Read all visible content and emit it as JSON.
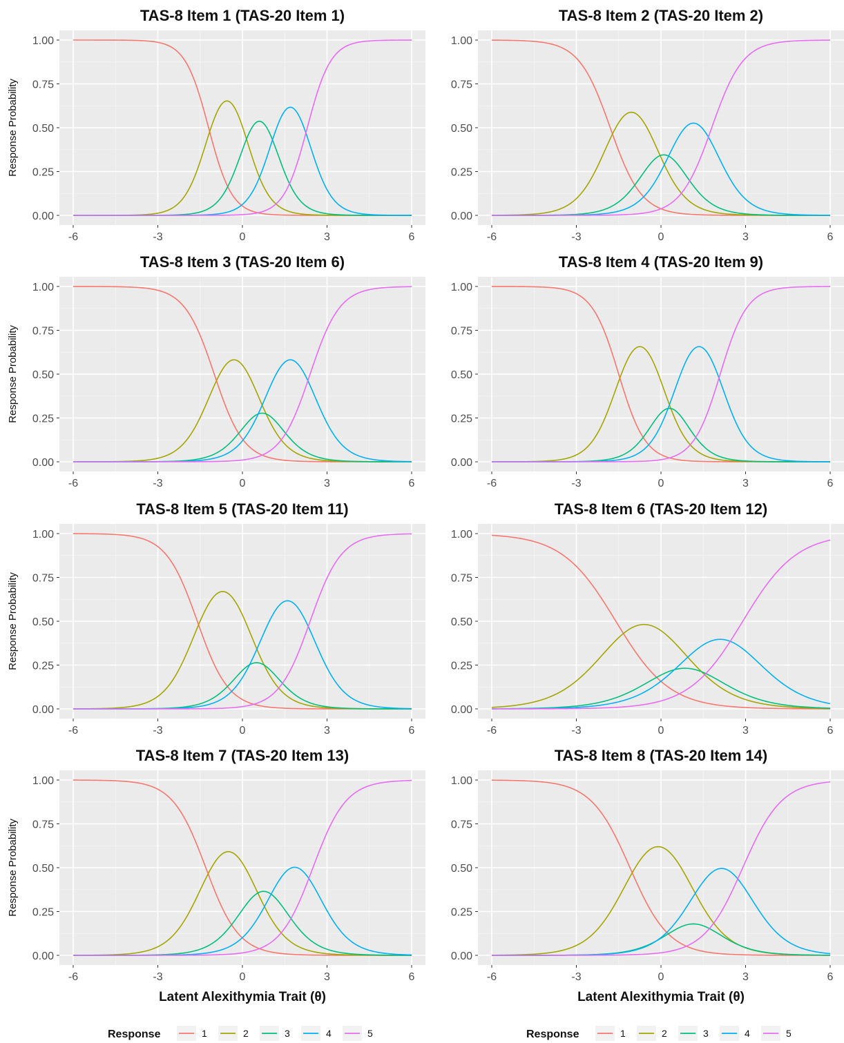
{
  "chart_data": {
    "type": "line",
    "ylabel": "Response Probability",
    "xlabel": "Latent Alexithymia Trait (θ)",
    "xlim": [
      -6,
      6
    ],
    "ylim": [
      0,
      1
    ],
    "x_ticks": [
      "-6",
      "-3",
      "0",
      "3",
      "6"
    ],
    "y_ticks": [
      "0.00",
      "0.25",
      "0.50",
      "0.75",
      "1.00"
    ],
    "grid": true,
    "legend": {
      "title": "Response",
      "placement": "bottom",
      "entries": [
        {
          "label": "1",
          "color": "#F8766D"
        },
        {
          "label": "2",
          "color": "#A3A500"
        },
        {
          "label": "3",
          "color": "#00BF7D"
        },
        {
          "label": "4",
          "color": "#00B0F6"
        },
        {
          "label": "5",
          "color": "#E76BF3"
        }
      ]
    },
    "panels": [
      {
        "title": "TAS-8 Item 1 (TAS-20 Item 1)",
        "a": 2.4,
        "thresholds": [
          -1.2,
          0.1,
          1.1,
          2.3
        ]
      },
      {
        "title": "TAS-8 Item 2 (TAS-20 Item 2)",
        "a": 1.8,
        "thresholds": [
          -1.8,
          -0.3,
          0.5,
          1.8
        ]
      },
      {
        "title": "TAS-8 Item 3 (TAS-20 Item 6)",
        "a": 1.9,
        "thresholds": [
          -1.0,
          0.4,
          1.0,
          2.4
        ]
      },
      {
        "title": "TAS-8 Item 4 (TAS-20 Item 9)",
        "a": 2.1,
        "thresholds": [
          -1.5,
          0.0,
          0.6,
          2.1
        ]
      },
      {
        "title": "TAS-8 Item 5 (TAS-20 Item 11)",
        "a": 1.8,
        "thresholds": [
          -1.6,
          0.2,
          0.8,
          2.4
        ]
      },
      {
        "title": "TAS-8 Item 6 (TAS-20 Item 12)",
        "a": 1.05,
        "thresholds": [
          -1.6,
          0.4,
          1.3,
          2.9
        ]
      },
      {
        "title": "TAS-8 Item 7 (TAS-20 Item 13)",
        "a": 1.7,
        "thresholds": [
          -1.3,
          0.3,
          1.2,
          2.5
        ]
      },
      {
        "title": "TAS-8 Item 8 (TAS-20 Item 14)",
        "a": 1.45,
        "thresholds": [
          -1.1,
          0.9,
          1.4,
          2.9
        ]
      }
    ]
  }
}
